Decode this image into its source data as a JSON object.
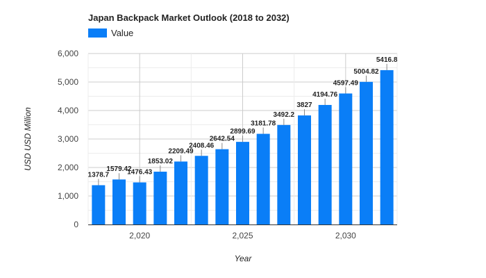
{
  "chart_data": {
    "type": "bar",
    "title": "Japan Backpack Market Outlook (2018 to 2032)",
    "xlabel": "Year",
    "ylabel": "USD USD Million",
    "legend": {
      "position": "top-left",
      "entries": [
        "Value"
      ]
    },
    "grid": true,
    "x": [
      2018,
      2019,
      2020,
      2021,
      2022,
      2023,
      2024,
      2025,
      2026,
      2027,
      2028,
      2029,
      2030,
      2031,
      2032
    ],
    "series": [
      {
        "name": "Value",
        "color": "#0a7ef7",
        "values": [
          1378.7,
          1579.42,
          1476.43,
          1853.02,
          2209.49,
          2408.46,
          2642.54,
          2899.69,
          3181.78,
          3492.2,
          3827,
          4194.76,
          4597.49,
          5004.82,
          5416.8
        ],
        "labels": [
          "1378.7",
          "1579.42",
          "1476.43",
          "1853.02",
          "2209.49",
          "2408.46",
          "2642.54",
          "2899.69",
          "3181.78",
          "3492.2",
          "3827",
          "4194.76",
          "4597.49",
          "5004.82",
          "5416.8"
        ]
      }
    ],
    "ylim": [
      0,
      6000
    ],
    "xlim": [
      2017.5,
      2032.5
    ],
    "y_ticks": [
      0,
      1000,
      2000,
      3000,
      4000,
      5000,
      6000
    ],
    "y_tick_labels": [
      "0",
      "1,000",
      "2,000",
      "3,000",
      "4,000",
      "5,000",
      "6,000"
    ],
    "x_ticks": [
      2020,
      2025,
      2030
    ],
    "x_tick_labels": [
      "2,020",
      "2,025",
      "2,030"
    ]
  }
}
